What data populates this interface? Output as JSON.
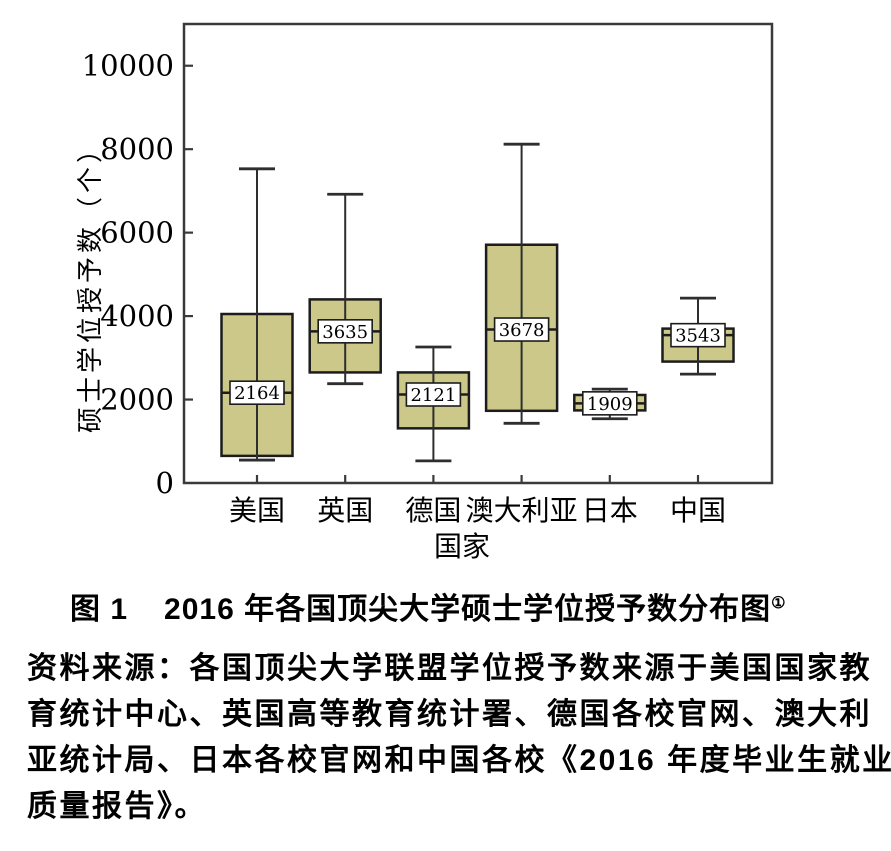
{
  "figure": {
    "caption_label": "图 1",
    "caption_title": "2016 年各国顶尖大学硕士学位授予数分布图",
    "caption_footnote_mark": "①",
    "source_lines": [
      "资料来源：各国顶尖大学联盟学位授予数来源于美国国家教",
      "育统计中心、英国高等教育统计署、德国各校官网、澳大利",
      "亚统计局、日本各校官网和中国各校《2016 年度毕业生就业",
      "质量报告》。"
    ]
  },
  "chart_data": {
    "type": "boxplot",
    "title": "",
    "xlabel": "国家",
    "ylabel": "硕士学位授予数（个）",
    "ylim": [
      0,
      11000
    ],
    "yticks": [
      0,
      2000,
      4000,
      6000,
      8000,
      10000
    ],
    "grid": false,
    "legend": "none",
    "categories": [
      "美国",
      "英国",
      "德国",
      "澳大利亚",
      "日本",
      "中国"
    ],
    "series": [
      {
        "category": "美国",
        "min": 550,
        "q1": 650,
        "median": 2164,
        "q3": 4050,
        "max": 7530
      },
      {
        "category": "英国",
        "min": 2380,
        "q1": 2650,
        "median": 3635,
        "q3": 4400,
        "max": 6920
      },
      {
        "category": "德国",
        "min": 530,
        "q1": 1310,
        "median": 2121,
        "q3": 2650,
        "max": 3260
      },
      {
        "category": "澳大利亚",
        "min": 1430,
        "q1": 1730,
        "median": 3678,
        "q3": 5710,
        "max": 8120
      },
      {
        "category": "日本",
        "min": 1540,
        "q1": 1740,
        "median": 1909,
        "q3": 2110,
        "max": 2250
      },
      {
        "category": "中国",
        "min": 2610,
        "q1": 2910,
        "median": 3543,
        "q3": 3700,
        "max": 4430
      }
    ],
    "median_labels_shown": true,
    "colors": {
      "box_fill": "#cbc88a",
      "box_stroke": "#1c1c1c",
      "whisker": "#2e2e2e",
      "frame": "#3a3a3a",
      "median_label_bg": "#ffffff",
      "median_label_border": "#1c1c1c",
      "text": "#000000"
    }
  }
}
